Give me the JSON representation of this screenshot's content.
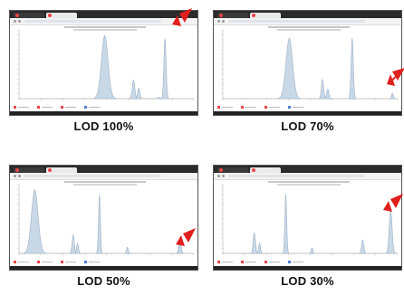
{
  "colors": {
    "peak_fill": "#c9d8e6",
    "peak_line": "#9fb3c8",
    "arrow": "#e0201c",
    "caption": "#111111"
  },
  "icons": [
    "red-arrow-icon"
  ],
  "panels": [
    {
      "caption": "LOD 100%",
      "peaks": [
        {
          "center": 0.49,
          "height": 0.92,
          "width": 0.018
        },
        {
          "center": 0.655,
          "height": 0.27,
          "width": 0.007
        },
        {
          "center": 0.685,
          "height": 0.15,
          "width": 0.006
        },
        {
          "center": 0.8,
          "height": 0.02,
          "width": 0.006
        },
        {
          "center": 0.835,
          "height": 0.87,
          "width": 0.006
        }
      ],
      "arrow_target": "right peak"
    },
    {
      "caption": "LOD 70%",
      "peaks": [
        {
          "center": 0.38,
          "height": 0.88,
          "width": 0.018
        },
        {
          "center": 0.57,
          "height": 0.28,
          "width": 0.006
        },
        {
          "center": 0.6,
          "height": 0.14,
          "width": 0.006
        },
        {
          "center": 0.74,
          "height": 0.88,
          "width": 0.006
        },
        {
          "center": 0.97,
          "height": 0.08,
          "width": 0.004
        }
      ],
      "arrow_target": "small right peak"
    },
    {
      "caption": "LOD 50%",
      "peaks": [
        {
          "center": 0.09,
          "height": 0.93,
          "width": 0.018
        },
        {
          "center": 0.31,
          "height": 0.27,
          "width": 0.006
        },
        {
          "center": 0.335,
          "height": 0.15,
          "width": 0.005
        },
        {
          "center": 0.46,
          "height": 0.85,
          "width": 0.005
        },
        {
          "center": 0.62,
          "height": 0.09,
          "width": 0.004
        },
        {
          "center": 0.92,
          "height": 0.2,
          "width": 0.006
        }
      ],
      "arrow_target": "right peak"
    },
    {
      "caption": "LOD 30%",
      "peaks": [
        {
          "center": 0.18,
          "height": 0.3,
          "width": 0.006
        },
        {
          "center": 0.21,
          "height": 0.15,
          "width": 0.005
        },
        {
          "center": 0.36,
          "height": 0.86,
          "width": 0.005
        },
        {
          "center": 0.51,
          "height": 0.08,
          "width": 0.004
        },
        {
          "center": 0.8,
          "height": 0.2,
          "width": 0.006
        },
        {
          "center": 0.96,
          "height": 0.62,
          "width": 0.008
        }
      ],
      "arrow_target": "right peak"
    }
  ]
}
